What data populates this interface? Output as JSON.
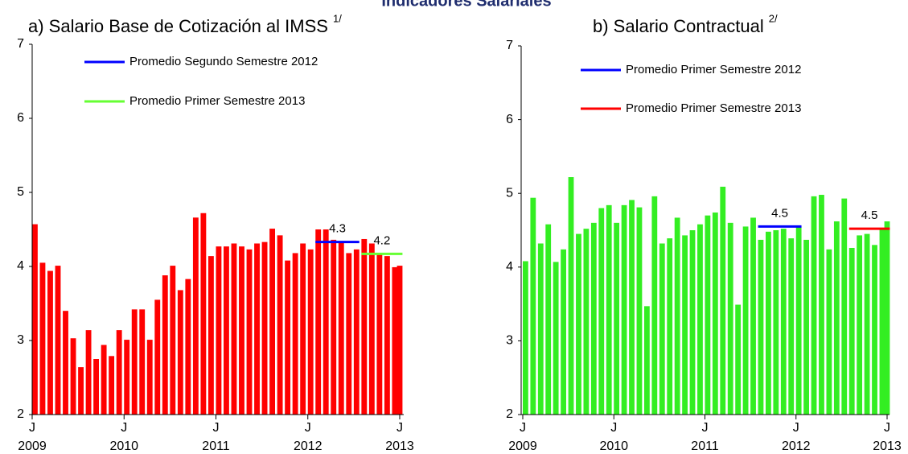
{
  "title": "Indicadores Salariales",
  "chart_data": [
    {
      "type": "bar",
      "title": "a) Salario Base de Cotización al IMSS",
      "note": "1/",
      "categories": [
        "J",
        null,
        null,
        null,
        null,
        null,
        null,
        null,
        null,
        null,
        null,
        null,
        "J",
        null,
        null,
        null,
        null,
        null,
        null,
        null,
        null,
        null,
        null,
        null,
        "J",
        null,
        null,
        null,
        null,
        null,
        null,
        null,
        null,
        null,
        null,
        null,
        "J",
        null,
        null,
        null,
        null,
        null,
        null,
        null,
        null,
        null,
        null,
        null,
        "J"
      ],
      "years": [
        "2009",
        "2010",
        "2011",
        "2012",
        "2013"
      ],
      "values": [
        4.57,
        4.05,
        3.94,
        4.01,
        3.4,
        3.03,
        2.64,
        3.14,
        2.75,
        2.94,
        2.79,
        3.14,
        3.01,
        3.42,
        3.42,
        3.01,
        3.55,
        3.88,
        4.01,
        3.68,
        3.83,
        4.66,
        4.72,
        4.14,
        4.27,
        4.27,
        4.31,
        4.27,
        4.23,
        4.31,
        4.33,
        4.51,
        4.42,
        4.08,
        4.18,
        4.31,
        4.23,
        4.5,
        4.5,
        4.36,
        4.33,
        4.18,
        4.23,
        4.37,
        4.31,
        4.18,
        4.14,
        3.99,
        4.01
      ],
      "color": "#ff0000",
      "averages": [
        {
          "name": "Promedio Segundo Semestre 2012",
          "color": "#0000ff",
          "value": 4.33,
          "value_label": "4.3",
          "span": [
            37,
            42
          ]
        },
        {
          "name": "Promedio Primer Semestre 2013",
          "color": "#66ff33",
          "value": 4.17,
          "value_label": "4.2",
          "span": [
            43,
            48
          ]
        }
      ],
      "ylim": [
        2,
        7
      ],
      "yticks": [
        2,
        3,
        4,
        5,
        6,
        7
      ]
    },
    {
      "type": "bar",
      "title": "b) Salario Contractual",
      "note": "2/",
      "categories": [
        "J",
        null,
        null,
        null,
        null,
        null,
        null,
        null,
        null,
        null,
        null,
        null,
        "J",
        null,
        null,
        null,
        null,
        null,
        null,
        null,
        null,
        null,
        null,
        null,
        "J",
        null,
        null,
        null,
        null,
        null,
        null,
        null,
        null,
        null,
        null,
        null,
        "J",
        null,
        null,
        null,
        null,
        null,
        null,
        null,
        null,
        null,
        null,
        null,
        "J"
      ],
      "years": [
        "2009",
        "2010",
        "2011",
        "2012",
        "2013"
      ],
      "values": [
        4.08,
        4.94,
        4.32,
        4.58,
        4.07,
        4.24,
        5.22,
        4.45,
        4.52,
        4.6,
        4.8,
        4.84,
        4.6,
        4.84,
        4.91,
        4.81,
        3.47,
        4.96,
        4.32,
        4.39,
        4.67,
        4.43,
        4.5,
        4.58,
        4.7,
        4.74,
        5.09,
        4.6,
        3.49,
        4.55,
        4.67,
        4.37,
        4.48,
        4.5,
        4.52,
        4.39,
        4.55,
        4.37,
        4.96,
        4.98,
        4.24,
        4.62,
        4.93,
        4.26,
        4.43,
        4.45,
        4.3,
        4.52,
        4.62
      ],
      "color": "#33ee22",
      "averages": [
        {
          "name": "Promedio Primer Semestre 2012",
          "color": "#0000ff",
          "value": 4.55,
          "value_label": "4.5",
          "span": [
            31,
            36
          ]
        },
        {
          "name": "Promedio Primer Semestre 2013",
          "color": "#ff0000",
          "value": 4.52,
          "value_label": "4.5",
          "span": [
            43,
            48
          ]
        }
      ],
      "ylim": [
        2,
        7
      ],
      "yticks": [
        2,
        3,
        4,
        5,
        6,
        7
      ]
    }
  ]
}
